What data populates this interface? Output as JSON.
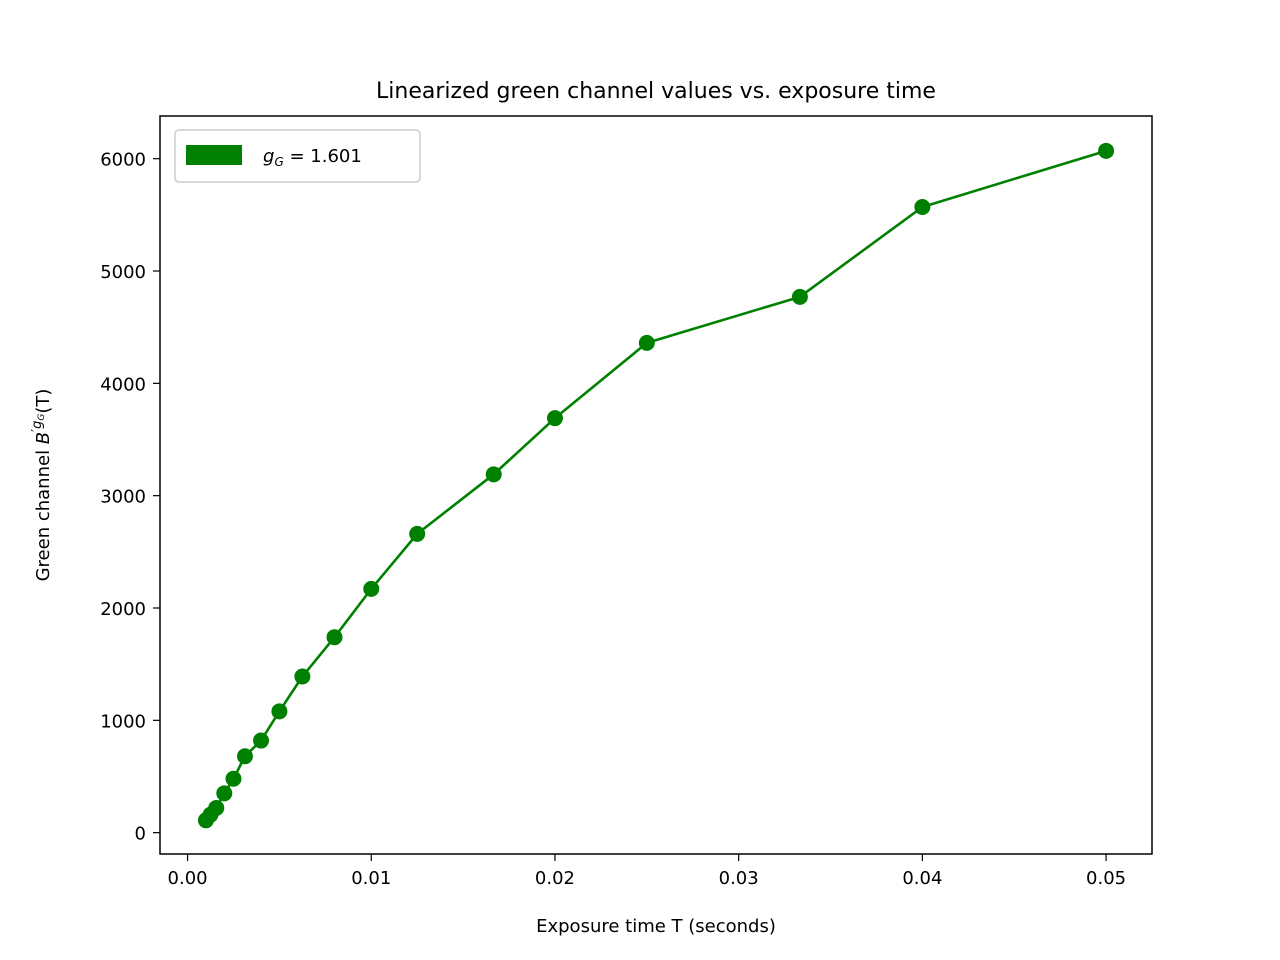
{
  "chart_data": {
    "type": "line",
    "title": "Linearized green channel values vs. exposure time",
    "xlabel": "Exposure time T (seconds)",
    "ylabel": {
      "prefix": "Green channel ",
      "symbol": "B",
      "exp_prime": "′",
      "exp_g": "g",
      "exp_sub": "G",
      "suffix": "(T)"
    },
    "xlim": [
      -0.0015,
      0.0525
    ],
    "ylim": [
      -190,
      6380
    ],
    "xticks": [
      0.0,
      0.01,
      0.02,
      0.03,
      0.04,
      0.05
    ],
    "xtick_labels": [
      "0.00",
      "0.01",
      "0.02",
      "0.03",
      "0.04",
      "0.05"
    ],
    "yticks": [
      0,
      1000,
      2000,
      3000,
      4000,
      5000,
      6000
    ],
    "ytick_labels": [
      "0",
      "1000",
      "2000",
      "3000",
      "4000",
      "5000",
      "6000"
    ],
    "grid": false,
    "legend_position": "top-left",
    "colors": {
      "series": "#008000"
    },
    "series": [
      {
        "name": "g_G = 1.601",
        "legend": {
          "g": "g",
          "sub": "G",
          "rest": " = 1.601"
        },
        "x": [
          0.001,
          0.00125,
          0.0015625,
          0.002,
          0.0025,
          0.003125,
          0.004,
          0.005,
          0.00625,
          0.008,
          0.01,
          0.0125,
          0.016667,
          0.02,
          0.025,
          0.033333,
          0.04,
          0.05
        ],
        "y": [
          110,
          160,
          220,
          350,
          480,
          680,
          820,
          1080,
          1390,
          1740,
          2170,
          2660,
          3190,
          3690,
          4360,
          4770,
          5570,
          6070
        ]
      }
    ]
  }
}
